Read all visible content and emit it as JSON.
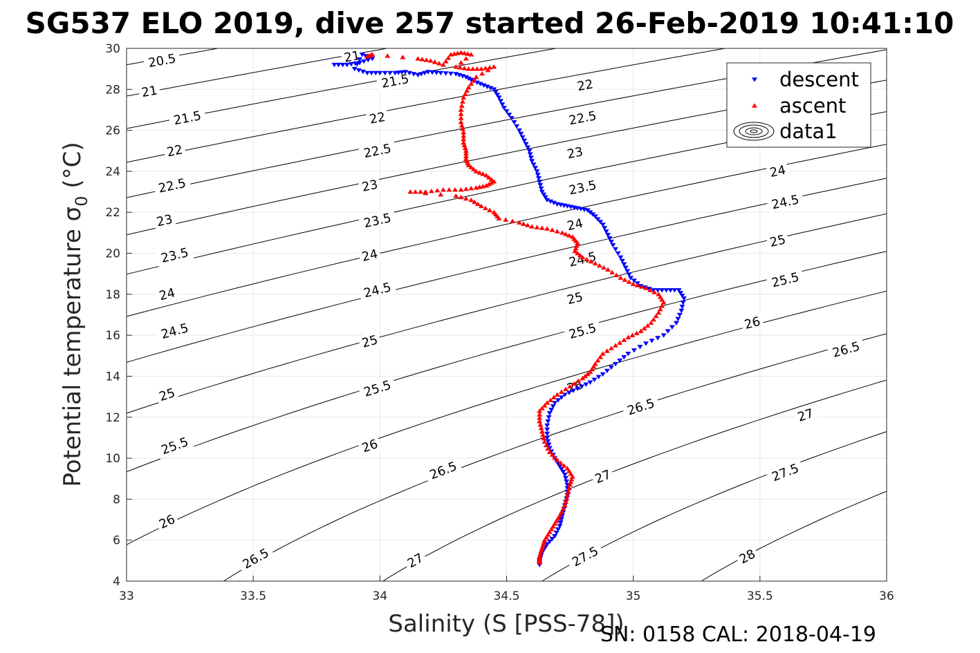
{
  "title": "SG537 ELO 2019, dive 257 started 26-Feb-2019 10:41:10",
  "xlabel": "Salinity (S [PSS-78])",
  "ylabel_main": "Potential temperature σ",
  "ylabel_sub": "0",
  "ylabel_unit": " (°C)",
  "footer": "SN: 0158  CAL: 2018-04-19",
  "colors": {
    "descent": "#0000ff",
    "ascent": "#ff0000",
    "contour": "#000000",
    "grid": "#e6e6e6"
  },
  "chart_data": {
    "type": "scatter",
    "xlim": [
      33,
      36
    ],
    "ylim": [
      4,
      30
    ],
    "x_ticks": [
      "33",
      "33.5",
      "34",
      "34.5",
      "35",
      "35.5",
      "36"
    ],
    "y_ticks": [
      "4",
      "6",
      "8",
      "10",
      "12",
      "14",
      "16",
      "18",
      "20",
      "22",
      "24",
      "26",
      "28",
      "30"
    ],
    "grid": true,
    "legend_position": "top-right",
    "legend": [
      {
        "label": "descent",
        "marker": "triangle-down"
      },
      {
        "label": "ascent",
        "marker": "triangle-up"
      },
      {
        "label": "data1",
        "marker": "contour"
      }
    ],
    "density_contours": [
      "20.5",
      "21",
      "21.5",
      "22",
      "22.5",
      "23",
      "23.5",
      "24",
      "24.5",
      "25",
      "25.5",
      "26",
      "26.5",
      "27",
      "27.5",
      "28"
    ],
    "contour_labels": [
      {
        "text": "20.5",
        "s": 33.14,
        "t": 29.4
      },
      {
        "text": "21",
        "s": 33.09,
        "t": 27.9
      },
      {
        "text": "21",
        "s": 33.89,
        "t": 29.6
      },
      {
        "text": "21.5",
        "s": 33.24,
        "t": 26.6
      },
      {
        "text": "21.5",
        "s": 34.06,
        "t": 28.4
      },
      {
        "text": "22",
        "s": 33.19,
        "t": 25.0
      },
      {
        "text": "22",
        "s": 33.99,
        "t": 26.6
      },
      {
        "text": "22",
        "s": 34.81,
        "t": 28.2
      },
      {
        "text": "22.5",
        "s": 33.18,
        "t": 23.3
      },
      {
        "text": "22.5",
        "s": 33.99,
        "t": 25.0
      },
      {
        "text": "22.5",
        "s": 34.8,
        "t": 26.6
      },
      {
        "text": "23",
        "s": 33.15,
        "t": 21.6
      },
      {
        "text": "23",
        "s": 33.96,
        "t": 23.3
      },
      {
        "text": "23",
        "s": 34.77,
        "t": 24.9
      },
      {
        "text": "23.5",
        "s": 33.19,
        "t": 19.9
      },
      {
        "text": "23.5",
        "s": 33.99,
        "t": 21.6
      },
      {
        "text": "23.5",
        "s": 34.8,
        "t": 23.2
      },
      {
        "text": "24",
        "s": 33.16,
        "t": 18.0
      },
      {
        "text": "24",
        "s": 33.96,
        "t": 19.9
      },
      {
        "text": "24",
        "s": 34.77,
        "t": 21.4
      },
      {
        "text": "24",
        "s": 35.57,
        "t": 24.0
      },
      {
        "text": "24.5",
        "s": 33.19,
        "t": 16.2
      },
      {
        "text": "24.5",
        "s": 33.99,
        "t": 18.2
      },
      {
        "text": "24.5",
        "s": 34.8,
        "t": 19.7
      },
      {
        "text": "24.5",
        "s": 35.6,
        "t": 22.5
      },
      {
        "text": "25",
        "s": 33.16,
        "t": 13.1
      },
      {
        "text": "25",
        "s": 33.96,
        "t": 15.7
      },
      {
        "text": "25",
        "s": 34.77,
        "t": 17.8
      },
      {
        "text": "25",
        "s": 35.57,
        "t": 20.6
      },
      {
        "text": "25.5",
        "s": 33.19,
        "t": 10.6
      },
      {
        "text": "25.5",
        "s": 33.99,
        "t": 13.4
      },
      {
        "text": "25.5",
        "s": 34.8,
        "t": 16.2
      },
      {
        "text": "25.5",
        "s": 35.6,
        "t": 18.7
      },
      {
        "text": "26",
        "s": 33.16,
        "t": 6.9
      },
      {
        "text": "26",
        "s": 33.96,
        "t": 10.6
      },
      {
        "text": "26",
        "s": 34.77,
        "t": 13.5
      },
      {
        "text": "26",
        "s": 35.47,
        "t": 16.6
      },
      {
        "text": "26.5",
        "s": 33.51,
        "t": 5.1
      },
      {
        "text": "26.5",
        "s": 34.25,
        "t": 9.4
      },
      {
        "text": "26.5",
        "s": 35.03,
        "t": 12.5
      },
      {
        "text": "26.5",
        "s": 35.84,
        "t": 15.3
      },
      {
        "text": "27",
        "s": 34.14,
        "t": 5.0
      },
      {
        "text": "27",
        "s": 34.88,
        "t": 9.1
      },
      {
        "text": "27",
        "s": 35.68,
        "t": 12.1
      },
      {
        "text": "27.5",
        "s": 34.81,
        "t": 5.2
      },
      {
        "text": "27.5",
        "s": 35.6,
        "t": 9.3
      },
      {
        "text": "28",
        "s": 35.45,
        "t": 5.2
      }
    ],
    "series": [
      {
        "name": "descent",
        "marker": "triangle-down",
        "color": "#0000ff",
        "points": [
          [
            33.82,
            29.2
          ],
          [
            33.87,
            29.2
          ],
          [
            33.92,
            29.3
          ],
          [
            33.97,
            29.5
          ],
          [
            33.93,
            29.7
          ],
          [
            33.9,
            29.0
          ],
          [
            33.95,
            28.8
          ],
          [
            34.0,
            28.8
          ],
          [
            34.06,
            28.8
          ],
          [
            34.1,
            28.85
          ],
          [
            34.15,
            28.7
          ],
          [
            34.19,
            28.85
          ],
          [
            34.24,
            28.8
          ],
          [
            34.3,
            28.75
          ],
          [
            34.34,
            28.6
          ],
          [
            34.37,
            28.4
          ],
          [
            34.41,
            28.2
          ],
          [
            34.45,
            28.0
          ],
          [
            34.47,
            27.6
          ],
          [
            34.49,
            27.1
          ],
          [
            34.52,
            26.6
          ],
          [
            34.55,
            26.0
          ],
          [
            34.57,
            25.5
          ],
          [
            34.59,
            25.0
          ],
          [
            34.6,
            24.5
          ],
          [
            34.62,
            24.0
          ],
          [
            34.63,
            23.5
          ],
          [
            34.64,
            23.0
          ],
          [
            34.66,
            22.6
          ],
          [
            34.7,
            22.4
          ],
          [
            34.74,
            22.3
          ],
          [
            34.78,
            22.2
          ],
          [
            34.82,
            22.1
          ],
          [
            34.85,
            21.8
          ],
          [
            34.88,
            21.4
          ],
          [
            34.9,
            20.9
          ],
          [
            34.92,
            20.4
          ],
          [
            34.95,
            19.8
          ],
          [
            34.97,
            19.3
          ],
          [
            34.99,
            18.8
          ],
          [
            35.03,
            18.4
          ],
          [
            35.08,
            18.2
          ],
          [
            35.13,
            18.2
          ],
          [
            35.18,
            18.2
          ],
          [
            35.2,
            17.8
          ],
          [
            35.19,
            17.2
          ],
          [
            35.17,
            16.6
          ],
          [
            35.12,
            16.0
          ],
          [
            35.05,
            15.6
          ],
          [
            34.98,
            15.1
          ],
          [
            34.93,
            14.6
          ],
          [
            34.88,
            14.1
          ],
          [
            34.83,
            13.7
          ],
          [
            34.78,
            13.4
          ],
          [
            34.73,
            13.1
          ],
          [
            34.69,
            12.7
          ],
          [
            34.67,
            12.2
          ],
          [
            34.66,
            11.6
          ],
          [
            34.66,
            11.0
          ],
          [
            34.67,
            10.5
          ],
          [
            34.69,
            10.0
          ],
          [
            34.71,
            9.6
          ],
          [
            34.73,
            9.2
          ],
          [
            34.74,
            8.7
          ],
          [
            34.74,
            8.2
          ],
          [
            34.73,
            7.7
          ],
          [
            34.72,
            7.2
          ],
          [
            34.71,
            6.7
          ],
          [
            34.69,
            6.2
          ],
          [
            34.66,
            5.8
          ],
          [
            34.64,
            5.4
          ],
          [
            34.63,
            5.0
          ],
          [
            34.63,
            4.8
          ]
        ]
      },
      {
        "name": "ascent",
        "marker": "triangle-up",
        "color": "#ff0000",
        "points": [
          [
            33.95,
            29.6
          ],
          [
            33.97,
            29.7
          ],
          [
            34.15,
            29.5
          ],
          [
            34.2,
            29.4
          ],
          [
            34.25,
            29.2
          ],
          [
            34.28,
            29.7
          ],
          [
            34.32,
            29.8
          ],
          [
            34.36,
            29.7
          ],
          [
            34.3,
            29.1
          ],
          [
            34.35,
            29.0
          ],
          [
            34.4,
            29.0
          ],
          [
            34.45,
            29.1
          ],
          [
            34.38,
            28.6
          ],
          [
            34.35,
            28.1
          ],
          [
            34.33,
            27.6
          ],
          [
            34.32,
            27.0
          ],
          [
            34.32,
            26.4
          ],
          [
            34.33,
            25.9
          ],
          [
            34.33,
            25.4
          ],
          [
            34.34,
            25.0
          ],
          [
            34.34,
            24.6
          ],
          [
            34.35,
            24.3
          ],
          [
            34.38,
            24.0
          ],
          [
            34.42,
            23.8
          ],
          [
            34.45,
            23.5
          ],
          [
            34.42,
            23.3
          ],
          [
            34.38,
            23.2
          ],
          [
            34.32,
            23.1
          ],
          [
            34.25,
            23.1
          ],
          [
            34.18,
            23.0
          ],
          [
            34.12,
            23.0
          ],
          [
            34.3,
            22.8
          ],
          [
            34.36,
            22.6
          ],
          [
            34.4,
            22.3
          ],
          [
            34.45,
            22.0
          ],
          [
            34.47,
            21.7
          ],
          [
            34.55,
            21.5
          ],
          [
            34.6,
            21.3
          ],
          [
            34.66,
            21.2
          ],
          [
            34.72,
            21.0
          ],
          [
            34.76,
            20.8
          ],
          [
            34.78,
            20.5
          ],
          [
            34.77,
            20.1
          ],
          [
            34.8,
            19.8
          ],
          [
            34.85,
            19.5
          ],
          [
            34.9,
            19.2
          ],
          [
            34.95,
            18.8
          ],
          [
            35.0,
            18.5
          ],
          [
            35.05,
            18.3
          ],
          [
            35.1,
            18.0
          ],
          [
            35.12,
            17.6
          ],
          [
            35.1,
            17.1
          ],
          [
            35.07,
            16.6
          ],
          [
            35.03,
            16.2
          ],
          [
            34.98,
            15.9
          ],
          [
            34.93,
            15.5
          ],
          [
            34.88,
            15.1
          ],
          [
            34.85,
            14.6
          ],
          [
            34.83,
            14.2
          ],
          [
            34.8,
            13.9
          ],
          [
            34.75,
            13.5
          ],
          [
            34.7,
            13.1
          ],
          [
            34.66,
            12.7
          ],
          [
            34.63,
            12.3
          ],
          [
            34.63,
            11.8
          ],
          [
            34.64,
            11.3
          ],
          [
            34.65,
            10.8
          ],
          [
            34.67,
            10.3
          ],
          [
            34.7,
            9.9
          ],
          [
            34.74,
            9.5
          ],
          [
            34.76,
            9.1
          ],
          [
            34.75,
            8.7
          ],
          [
            34.74,
            8.2
          ],
          [
            34.73,
            7.7
          ],
          [
            34.71,
            7.2
          ],
          [
            34.69,
            6.8
          ],
          [
            34.67,
            6.4
          ],
          [
            34.65,
            6.0
          ],
          [
            34.64,
            5.6
          ],
          [
            34.63,
            5.2
          ],
          [
            34.63,
            4.9
          ]
        ]
      }
    ]
  }
}
